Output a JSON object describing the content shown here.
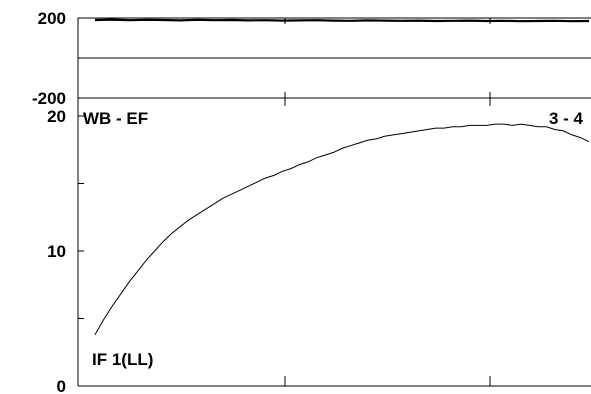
{
  "chart_data": [
    {
      "type": "line",
      "panel": "top",
      "ylim": [
        -200,
        200
      ],
      "y_ticks": [
        {
          "value": 200,
          "label": "200"
        },
        {
          "value": -200,
          "label": "-200"
        }
      ],
      "series": [
        {
          "values": [
            190,
            192,
            189,
            191,
            190,
            188,
            191,
            189,
            190,
            188,
            189,
            187,
            188,
            189,
            187,
            186,
            188,
            187,
            186,
            187,
            185,
            186,
            187,
            185,
            186,
            184,
            185,
            186,
            184,
            185
          ]
        }
      ],
      "annotations": []
    },
    {
      "type": "line",
      "panel": "bottom",
      "ylim": [
        0,
        20
      ],
      "y_ticks": [
        {
          "value": 20,
          "label": "20"
        },
        {
          "value": 10,
          "label": "10"
        },
        {
          "value": 0,
          "label": "0"
        }
      ],
      "series": [
        {
          "values": [
            3.8,
            4.9,
            5.9,
            6.8,
            7.7,
            8.5,
            9.3,
            10.0,
            10.7,
            11.3,
            11.8,
            12.3,
            12.7,
            13.1,
            13.5,
            13.9,
            14.2,
            14.5,
            14.8,
            15.1,
            15.4,
            15.6,
            15.9,
            16.1,
            16.4,
            16.6,
            16.9,
            17.1,
            17.3,
            17.6,
            17.8,
            18.0,
            18.2,
            18.3,
            18.5,
            18.6,
            18.7,
            18.8,
            18.9,
            19.0,
            19.1,
            19.1,
            19.2,
            19.2,
            19.3,
            19.3,
            19.3,
            19.4,
            19.4,
            19.3,
            19.4,
            19.3,
            19.2,
            19.2,
            19.0,
            18.9,
            18.6,
            18.4,
            18.1
          ]
        }
      ],
      "annotations": [
        {
          "text": "WB - EF",
          "position": "top-left"
        },
        {
          "text": "3 - 4",
          "position": "top-right"
        },
        {
          "text": "IF 1(LL)",
          "position": "bottom-left"
        }
      ]
    }
  ]
}
